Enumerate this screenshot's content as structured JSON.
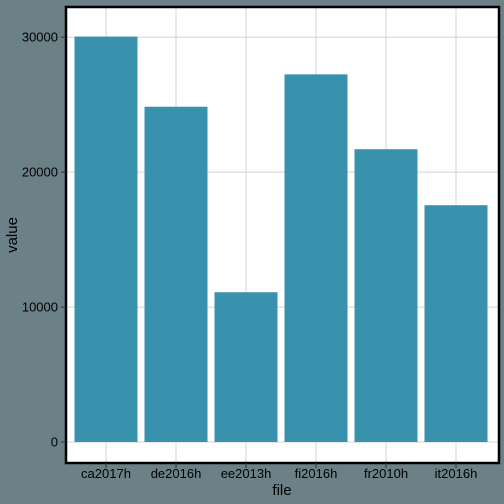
{
  "chart_data": {
    "type": "bar",
    "xlabel": "file",
    "ylabel": "value",
    "categories": [
      "ca2017h",
      "de2016h",
      "ee2013h",
      "fi2016h",
      "fr2010h",
      "it2016h"
    ],
    "values": [
      30050,
      24850,
      11100,
      27250,
      21700,
      17550
    ],
    "ylim": [
      0,
      31500
    ],
    "yticks": [
      0,
      10000,
      20000,
      30000
    ],
    "ytick_labels": [
      "0",
      "10000",
      "20000",
      "30000"
    ],
    "grid": true,
    "legend": "none",
    "colors": {
      "bar": "#3891ad",
      "panel": "#ffffff",
      "grid": "#d3d3d3",
      "background": "#6b8087",
      "border": "#000000"
    }
  }
}
